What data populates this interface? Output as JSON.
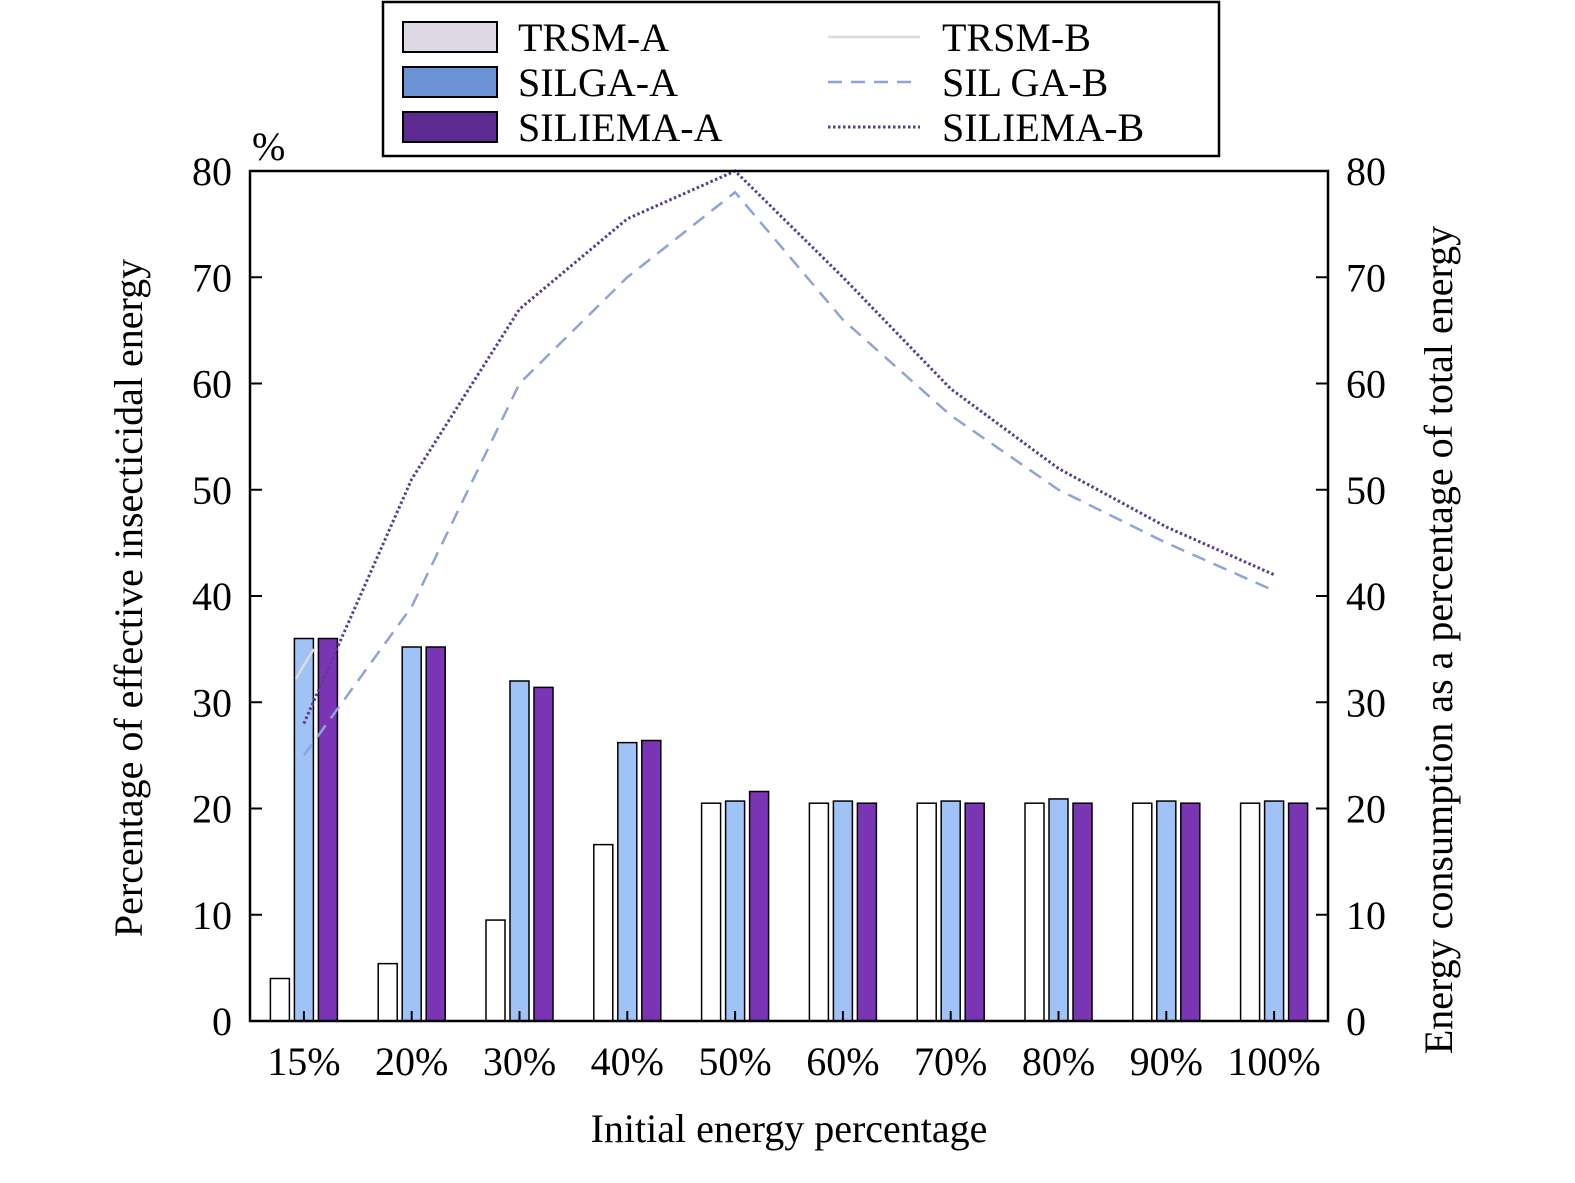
{
  "chart_data": {
    "type": "bar",
    "categories": [
      "15%",
      "20%",
      "30%",
      "40%",
      "50%",
      "60%",
      "70%",
      "80%",
      "90%",
      "100%"
    ],
    "xlabel": "Initial energy percentage",
    "ylabel": "Percentage of effective insecticidal energy",
    "ylabel_unit": "%",
    "y2label": "Energy consumption as a percentage of total energy",
    "ylim": [
      0,
      80
    ],
    "y2lim": [
      0,
      80
    ],
    "yticks": [
      0,
      10,
      20,
      30,
      40,
      50,
      60,
      70,
      80
    ],
    "y2ticks": [
      0,
      10,
      20,
      30,
      40,
      50,
      60,
      70,
      80
    ],
    "grid": false,
    "legend_position": "top-center",
    "bar_series": [
      {
        "name": "TRSM-A",
        "color": "#ffffff",
        "legend_color": "#ddd8e3",
        "values": [
          4,
          5.4,
          9.5,
          16.6,
          20.5,
          20.5,
          20.5,
          20.5,
          20.5,
          20.5
        ]
      },
      {
        "name": "SILGA-A",
        "color": "#9fc3f7",
        "legend_color": "#6b93d6",
        "values": [
          36,
          35.2,
          32,
          26.2,
          20.7,
          20.7,
          20.7,
          20.9,
          20.7,
          20.7
        ]
      },
      {
        "name": "SILIEMA-A",
        "color": "#7a35b5",
        "legend_color": "#5c2a91",
        "values": [
          36,
          35.2,
          31.4,
          26.4,
          21.6,
          20.5,
          20.5,
          20.5,
          20.5,
          20.5
        ]
      }
    ],
    "line_series": [
      {
        "name": "TRSM-B",
        "color": "#dcdcdc",
        "style": "solid",
        "axis": "right",
        "values": [
          33.5,
          null,
          null,
          null,
          null,
          null,
          null,
          null,
          null,
          null
        ]
      },
      {
        "name": "SIL GA-B",
        "color": "#8fa3d8",
        "style": "dashed",
        "axis": "right",
        "values": [
          25,
          39,
          60,
          70,
          78,
          66,
          57,
          50,
          45,
          40.5
        ]
      },
      {
        "name": "SILIEMA-B",
        "color": "#5a3d8f",
        "style": "dotted",
        "axis": "right",
        "values": [
          28,
          51,
          67,
          75.5,
          80,
          70,
          59.5,
          52,
          46.5,
          42
        ]
      }
    ]
  }
}
